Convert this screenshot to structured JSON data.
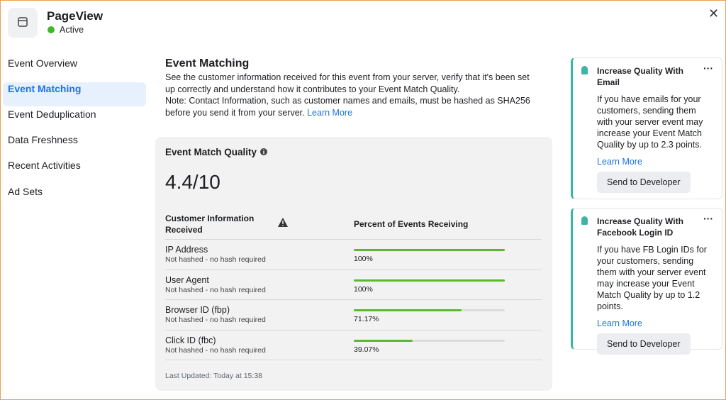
{
  "header": {
    "title": "PageView",
    "status": "Active"
  },
  "nav": {
    "items": [
      "Event Overview",
      "Event Matching",
      "Event Deduplication",
      "Data Freshness",
      "Recent Activities",
      "Ad Sets"
    ],
    "selected": 1
  },
  "main": {
    "title": "Event Matching",
    "description": "See the customer information received for this event from your server, verify that it's been set up correctly and understand how it contributes to your Event Match Quality.",
    "note": "Note: Contact Information, such as customer names and emails, must be hashed as SHA256 before you send it from your server.",
    "learn_more": "Learn More"
  },
  "quality": {
    "title": "Event Match Quality",
    "score": "4.4/10",
    "columns": [
      "Customer Information Received",
      "Percent of Events Receiving"
    ],
    "rows": [
      {
        "name": "IP Address",
        "note": "Not hashed - no hash required",
        "percent": 100,
        "percent_label": "100%"
      },
      {
        "name": "User Agent",
        "note": "Not hashed - no hash required",
        "percent": 100,
        "percent_label": "100%"
      },
      {
        "name": "Browser ID (fbp)",
        "note": "Not hashed - no hash required",
        "percent": 71.17,
        "percent_label": "71.17%"
      },
      {
        "name": "Click ID (fbc)",
        "note": "Not hashed - no hash required",
        "percent": 39.07,
        "percent_label": "39.07%"
      }
    ],
    "last_updated": "Last Updated: Today at 15:38"
  },
  "tips": [
    {
      "title": "Increase Quality With Email",
      "body": "If you have emails for your customers, sending them with your server event may increase your Event Match Quality by up to 2.3 points.",
      "link": "Learn More",
      "button": "Send to Developer"
    },
    {
      "title": "Increase Quality With Facebook Login ID",
      "body": "If you have FB Login IDs for your customers, sending them with your server event may increase your Event Match Quality by up to 1.2 points.",
      "link": "Learn More",
      "button": "Send to Developer"
    }
  ]
}
